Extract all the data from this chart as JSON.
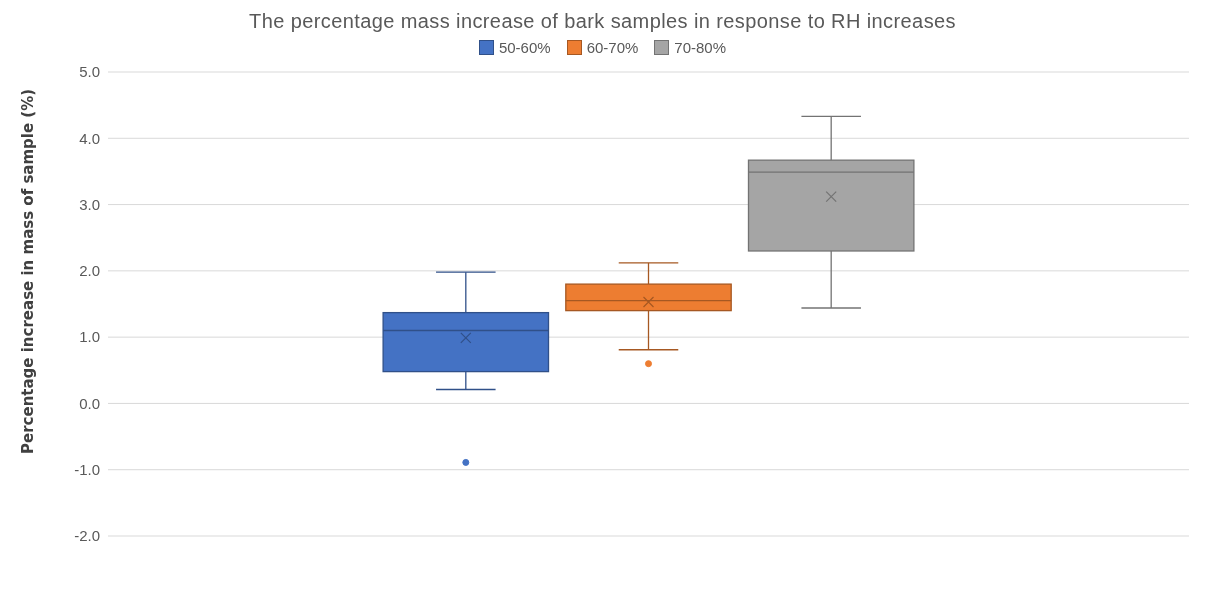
{
  "chart_data": {
    "type": "box",
    "title": "The percentage mass increase of bark samples in response to RH increases",
    "ylabel": "Percentage increase in mass of sample (%)",
    "categories": [
      null
    ],
    "series": [
      {
        "name": "50-60%",
        "color": "#4472c4",
        "boxes": [
          {
            "low": 0.21,
            "q1": 0.48,
            "median": 1.1,
            "q3": 1.37,
            "high": 1.98,
            "mean": 0.99,
            "outliers": [
              -0.89
            ]
          }
        ]
      },
      {
        "name": "60-70%",
        "color": "#ed7d31",
        "boxes": [
          {
            "low": 0.81,
            "q1": 1.4,
            "median": 1.55,
            "q3": 1.8,
            "high": 2.12,
            "mean": 1.53,
            "outliers": [
              0.6
            ]
          }
        ]
      },
      {
        "name": "70-80%",
        "color": "#a5a5a5",
        "boxes": [
          {
            "low": 1.44,
            "q1": 2.3,
            "median": 3.49,
            "q3": 3.67,
            "high": 4.33,
            "mean": 3.12
          }
        ]
      }
    ],
    "ylim": [
      -2,
      5
    ],
    "yticks": [
      {
        "value": -2,
        "label": "-2.0"
      },
      {
        "value": -1,
        "label": "-1.0"
      },
      {
        "value": 0,
        "label": "0.0"
      },
      {
        "value": 1,
        "label": "1.0"
      },
      {
        "value": 2,
        "label": "2.0"
      },
      {
        "value": 3,
        "label": "3.0"
      },
      {
        "value": 4,
        "label": "4.0"
      },
      {
        "value": 5,
        "label": "5.0"
      }
    ],
    "grid": "y",
    "legend": "top",
    "marker": "circle"
  }
}
